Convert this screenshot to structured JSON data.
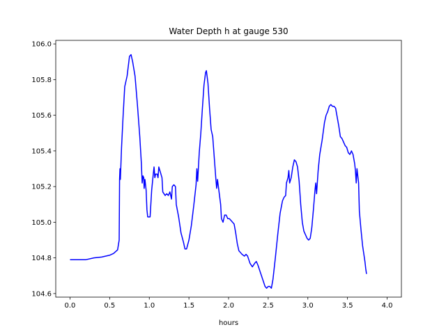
{
  "chart_data": {
    "type": "line",
    "title": "Water Depth h at gauge 530",
    "xlabel": "hours",
    "ylabel": "",
    "xlim": [
      -0.18,
      4.18
    ],
    "ylim": [
      104.58,
      106.02
    ],
    "xticks": [
      0.0,
      0.5,
      1.0,
      1.5,
      2.0,
      2.5,
      3.0,
      3.5,
      4.0
    ],
    "yticks": [
      104.6,
      104.8,
      105.0,
      105.2,
      105.4,
      105.6,
      105.8,
      106.0
    ],
    "xtick_labels": [
      "0.0",
      "0.5",
      "1.0",
      "1.5",
      "2.0",
      "2.5",
      "3.0",
      "3.5",
      "4.0"
    ],
    "ytick_labels": [
      "104.6",
      "104.8",
      "105.0",
      "105.2",
      "105.4",
      "105.6",
      "105.8",
      "106.0"
    ],
    "grid": false,
    "series": [
      {
        "color": "#0000ff",
        "points": [
          [
            0.0,
            104.79
          ],
          [
            0.2,
            104.79
          ],
          [
            0.3,
            104.8
          ],
          [
            0.4,
            104.805
          ],
          [
            0.5,
            104.815
          ],
          [
            0.55,
            104.825
          ],
          [
            0.6,
            104.845
          ],
          [
            0.62,
            104.9
          ],
          [
            0.625,
            105.24
          ],
          [
            0.63,
            105.3
          ],
          [
            0.635,
            105.24
          ],
          [
            0.65,
            105.42
          ],
          [
            0.67,
            105.6
          ],
          [
            0.69,
            105.76
          ],
          [
            0.72,
            105.82
          ],
          [
            0.75,
            105.93
          ],
          [
            0.77,
            105.94
          ],
          [
            0.79,
            105.9
          ],
          [
            0.82,
            105.82
          ],
          [
            0.85,
            105.66
          ],
          [
            0.88,
            105.48
          ],
          [
            0.9,
            105.33
          ],
          [
            0.91,
            105.22
          ],
          [
            0.92,
            105.26
          ],
          [
            0.93,
            105.25
          ],
          [
            0.935,
            105.19
          ],
          [
            0.945,
            105.24
          ],
          [
            0.96,
            105.18
          ],
          [
            0.97,
            105.07
          ],
          [
            0.98,
            105.03
          ],
          [
            1.01,
            105.03
          ],
          [
            1.03,
            105.18
          ],
          [
            1.05,
            105.27
          ],
          [
            1.06,
            105.31
          ],
          [
            1.07,
            105.25
          ],
          [
            1.08,
            105.27
          ],
          [
            1.1,
            105.27
          ],
          [
            1.11,
            105.25
          ],
          [
            1.12,
            105.31
          ],
          [
            1.14,
            105.28
          ],
          [
            1.16,
            105.25
          ],
          [
            1.17,
            105.17
          ],
          [
            1.2,
            105.15
          ],
          [
            1.22,
            105.16
          ],
          [
            1.24,
            105.15
          ],
          [
            1.26,
            105.17
          ],
          [
            1.28,
            105.13
          ],
          [
            1.29,
            105.2
          ],
          [
            1.31,
            105.21
          ],
          [
            1.33,
            105.2
          ],
          [
            1.34,
            105.1
          ],
          [
            1.37,
            105.03
          ],
          [
            1.4,
            104.94
          ],
          [
            1.43,
            104.89
          ],
          [
            1.45,
            104.85
          ],
          [
            1.47,
            104.85
          ],
          [
            1.5,
            104.9
          ],
          [
            1.53,
            104.98
          ],
          [
            1.56,
            105.09
          ],
          [
            1.59,
            105.21
          ],
          [
            1.6,
            105.3
          ],
          [
            1.61,
            105.23
          ],
          [
            1.62,
            105.31
          ],
          [
            1.63,
            105.39
          ],
          [
            1.65,
            105.5
          ],
          [
            1.67,
            105.64
          ],
          [
            1.69,
            105.77
          ],
          [
            1.71,
            105.84
          ],
          [
            1.72,
            105.85
          ],
          [
            1.74,
            105.78
          ],
          [
            1.76,
            105.64
          ],
          [
            1.78,
            105.52
          ],
          [
            1.8,
            105.48
          ],
          [
            1.82,
            105.36
          ],
          [
            1.84,
            105.24
          ],
          [
            1.85,
            105.19
          ],
          [
            1.86,
            105.24
          ],
          [
            1.88,
            105.17
          ],
          [
            1.9,
            105.1
          ],
          [
            1.91,
            105.02
          ],
          [
            1.93,
            105.0
          ],
          [
            1.95,
            105.04
          ],
          [
            1.97,
            105.04
          ],
          [
            1.99,
            105.02
          ],
          [
            2.01,
            105.02
          ],
          [
            2.03,
            105.01
          ],
          [
            2.05,
            105.0
          ],
          [
            2.07,
            104.99
          ],
          [
            2.09,
            104.94
          ],
          [
            2.11,
            104.88
          ],
          [
            2.13,
            104.84
          ],
          [
            2.15,
            104.83
          ],
          [
            2.17,
            104.82
          ],
          [
            2.2,
            104.81
          ],
          [
            2.22,
            104.82
          ],
          [
            2.24,
            104.81
          ],
          [
            2.27,
            104.77
          ],
          [
            2.3,
            104.75
          ],
          [
            2.33,
            104.77
          ],
          [
            2.35,
            104.78
          ],
          [
            2.37,
            104.76
          ],
          [
            2.4,
            104.72
          ],
          [
            2.43,
            104.68
          ],
          [
            2.46,
            104.64
          ],
          [
            2.48,
            104.63
          ],
          [
            2.5,
            104.64
          ],
          [
            2.52,
            104.64
          ],
          [
            2.54,
            104.63
          ],
          [
            2.56,
            104.68
          ],
          [
            2.59,
            104.8
          ],
          [
            2.62,
            104.93
          ],
          [
            2.65,
            105.05
          ],
          [
            2.68,
            105.12
          ],
          [
            2.7,
            105.14
          ],
          [
            2.72,
            105.15
          ],
          [
            2.73,
            105.22
          ],
          [
            2.75,
            105.25
          ],
          [
            2.76,
            105.29
          ],
          [
            2.77,
            105.22
          ],
          [
            2.79,
            105.25
          ],
          [
            2.81,
            105.31
          ],
          [
            2.83,
            105.35
          ],
          [
            2.85,
            105.34
          ],
          [
            2.87,
            105.31
          ],
          [
            2.89,
            105.23
          ],
          [
            2.91,
            105.1
          ],
          [
            2.93,
            105.0
          ],
          [
            2.95,
            104.95
          ],
          [
            2.97,
            104.93
          ],
          [
            2.99,
            104.91
          ],
          [
            3.01,
            104.9
          ],
          [
            3.03,
            104.91
          ],
          [
            3.05,
            104.97
          ],
          [
            3.07,
            105.07
          ],
          [
            3.09,
            105.18
          ],
          [
            3.1,
            105.22
          ],
          [
            3.11,
            105.16
          ],
          [
            3.13,
            105.29
          ],
          [
            3.15,
            105.38
          ],
          [
            3.18,
            105.46
          ],
          [
            3.21,
            105.56
          ],
          [
            3.23,
            105.6
          ],
          [
            3.25,
            105.62
          ],
          [
            3.27,
            105.65
          ],
          [
            3.29,
            105.66
          ],
          [
            3.31,
            105.65
          ],
          [
            3.33,
            105.65
          ],
          [
            3.35,
            105.64
          ],
          [
            3.37,
            105.59
          ],
          [
            3.39,
            105.54
          ],
          [
            3.41,
            105.48
          ],
          [
            3.43,
            105.47
          ],
          [
            3.45,
            105.45
          ],
          [
            3.47,
            105.43
          ],
          [
            3.49,
            105.42
          ],
          [
            3.51,
            105.39
          ],
          [
            3.53,
            105.38
          ],
          [
            3.55,
            105.4
          ],
          [
            3.57,
            105.38
          ],
          [
            3.59,
            105.33
          ],
          [
            3.6,
            105.29
          ],
          [
            3.61,
            105.22
          ],
          [
            3.62,
            105.3
          ],
          [
            3.64,
            105.22
          ],
          [
            3.65,
            105.06
          ],
          [
            3.67,
            104.96
          ],
          [
            3.69,
            104.87
          ],
          [
            3.7,
            104.84
          ],
          [
            3.72,
            104.78
          ],
          [
            3.73,
            104.74
          ],
          [
            3.74,
            104.71
          ]
        ]
      }
    ]
  }
}
